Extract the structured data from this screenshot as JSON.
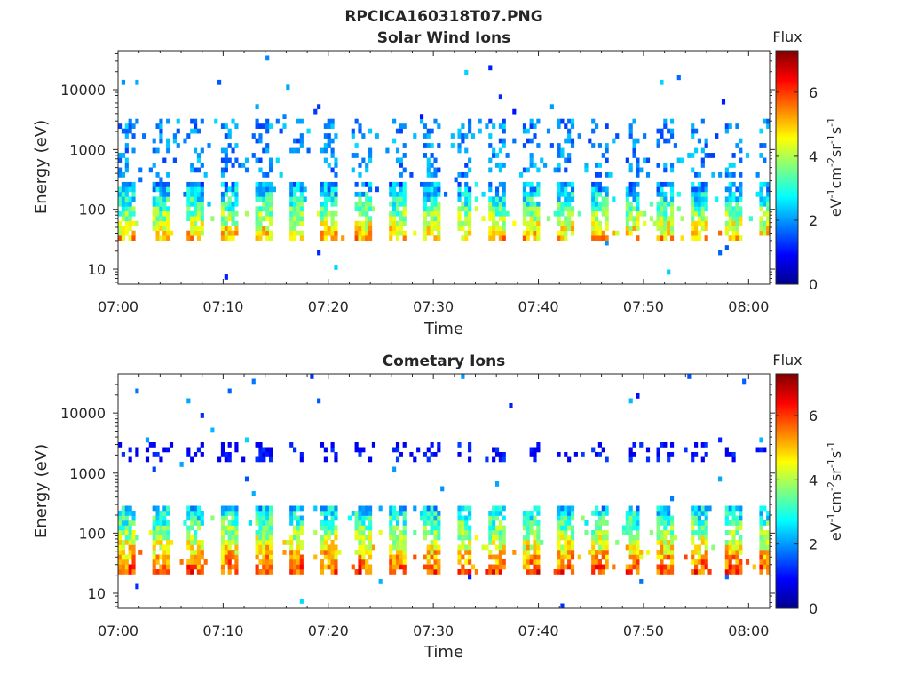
{
  "figure": {
    "title": "RPCICA160318T07.PNG"
  },
  "colormap": "jet",
  "chart_data": [
    {
      "type": "heatmap",
      "title": "Solar Wind Ions",
      "xlabel": "Time",
      "ylabel": "Energy (eV)",
      "x_ticks": [
        "07:00",
        "07:10",
        "07:20",
        "07:30",
        "07:40",
        "07:50",
        "08:00"
      ],
      "xlim": [
        "07:00",
        "08:02"
      ],
      "yscale": "log",
      "y_ticks": [
        "10",
        "100",
        "1000",
        "10000"
      ],
      "ylim": [
        5.6,
        45000
      ],
      "colorbar": {
        "label_top": "Flux",
        "label": "eV-1cm-2sr-1s-1",
        "ticks": [
          "0",
          "2",
          "4",
          "6"
        ],
        "range": [
          0,
          7.3
        ]
      },
      "pattern": {
        "cycle_minutes": 3.2,
        "low_band_energy_eV": [
          28,
          280
        ],
        "low_band_peak_log_flux": 6.2,
        "mid_band_energy_eV": [
          350,
          3500
        ],
        "mid_band_peak_log_flux": 2.5
      }
    },
    {
      "type": "heatmap",
      "title": "Cometary Ions",
      "xlabel": "Time",
      "ylabel": "Energy (eV)",
      "x_ticks": [
        "07:00",
        "07:10",
        "07:20",
        "07:30",
        "07:40",
        "07:50",
        "08:00"
      ],
      "xlim": [
        "07:00",
        "08:02"
      ],
      "yscale": "log",
      "y_ticks": [
        "10",
        "100",
        "1000",
        "10000"
      ],
      "ylim": [
        5.6,
        45000
      ],
      "colorbar": {
        "label_top": "Flux",
        "label": "eV-1cm-2sr-1s-1",
        "ticks": [
          "0",
          "2",
          "4",
          "6"
        ],
        "range": [
          0,
          7.3
        ]
      },
      "pattern": {
        "cycle_minutes": 3.2,
        "low_band_energy_eV": [
          22,
          300
        ],
        "low_band_peak_log_flux": 6.9,
        "mid_band_energy_eV": [
          1500,
          3500
        ],
        "mid_band_peak_log_flux": 1.4
      }
    }
  ]
}
